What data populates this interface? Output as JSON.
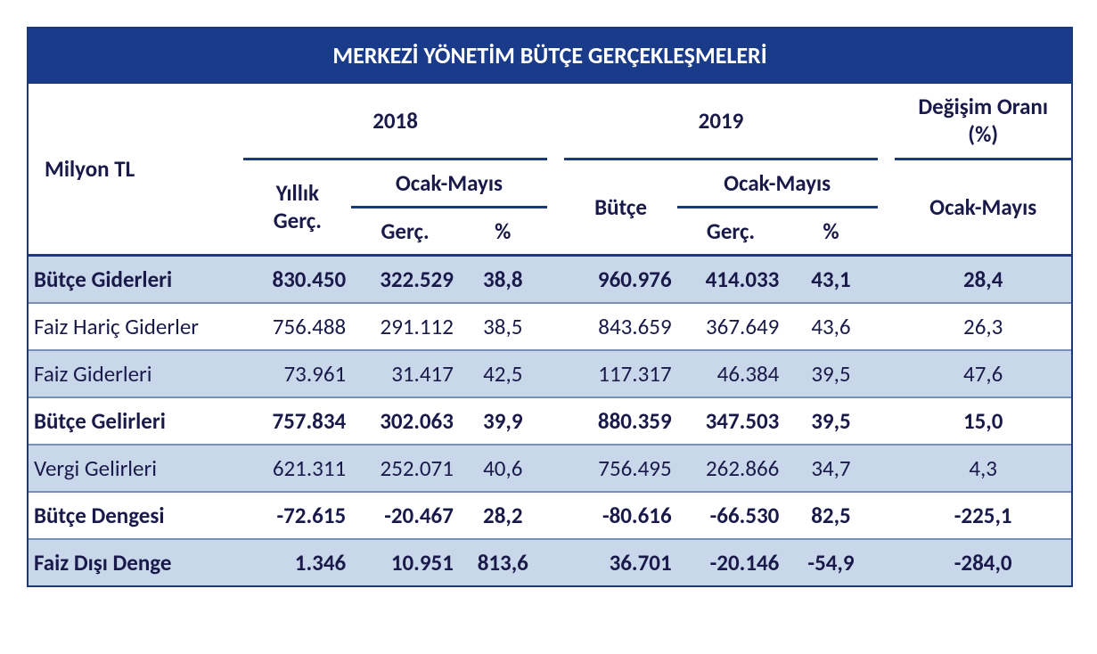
{
  "table": {
    "type": "table",
    "title": "MERKEZİ YÖNETİM BÜTÇE GERÇEKLEŞMELERİ",
    "unit_label": "Milyon TL",
    "colors": {
      "header_bg": "#1a3a8a",
      "header_text": "#ffffff",
      "border": "#1a3a7a",
      "row_shade": "#c9d7ea",
      "row_rule": "#7a8fb8",
      "text": "#1a1a4a",
      "background": "#ffffff"
    },
    "typography": {
      "title_fontsize_pt": 19,
      "body_fontsize_pt": 18,
      "font_family": "Calibri"
    },
    "header": {
      "year_2018": "2018",
      "year_2019": "2019",
      "change_label_l1": "Değişim Oranı",
      "change_label_l2": "(%)",
      "y2018_annual_l1": "Yıllık",
      "y2018_annual_l2": "Gerç.",
      "period_label": "Ocak-Mayıs",
      "sub_gerc": "Gerç.",
      "sub_pct": "%",
      "y2019_budget": "Bütçe",
      "change_sub": "Ocak-Mayıs"
    },
    "columns": [
      "label",
      "2018_yillik_gerc",
      "2018_ocakmayis_gerc",
      "2018_ocakmayis_pct",
      "2019_butce",
      "2019_ocakmayis_gerc",
      "2019_ocakmayis_pct",
      "degisim_ocakmayis_pct"
    ],
    "rows": [
      {
        "label": "Bütçe Giderleri",
        "bold": true,
        "shade": true,
        "v": [
          "830.450",
          "322.529",
          "38,8",
          "960.976",
          "414.033",
          "43,1",
          "28,4"
        ]
      },
      {
        "label": "Faiz Hariç Giderler",
        "bold": false,
        "shade": false,
        "v": [
          "756.488",
          "291.112",
          "38,5",
          "843.659",
          "367.649",
          "43,6",
          "26,3"
        ]
      },
      {
        "label": "Faiz Giderleri",
        "bold": false,
        "shade": true,
        "v": [
          "73.961",
          "31.417",
          "42,5",
          "117.317",
          "46.384",
          "39,5",
          "47,6"
        ]
      },
      {
        "label": "Bütçe Gelirleri",
        "bold": true,
        "shade": false,
        "v": [
          "757.834",
          "302.063",
          "39,9",
          "880.359",
          "347.503",
          "39,5",
          "15,0"
        ]
      },
      {
        "label": "Vergi Gelirleri",
        "bold": false,
        "shade": true,
        "v": [
          "621.311",
          "252.071",
          "40,6",
          "756.495",
          "262.866",
          "34,7",
          "4,3"
        ]
      },
      {
        "label": "Bütçe Dengesi",
        "bold": true,
        "shade": false,
        "v": [
          "-72.615",
          "-20.467",
          "28,2",
          "-80.616",
          "-66.530",
          "82,5",
          "-225,1"
        ]
      },
      {
        "label": "Faiz Dışı Denge",
        "bold": true,
        "shade": true,
        "v": [
          "1.346",
          "10.951",
          "813,6",
          "36.701",
          "-20.146",
          "-54,9",
          "-284,0"
        ]
      }
    ]
  }
}
